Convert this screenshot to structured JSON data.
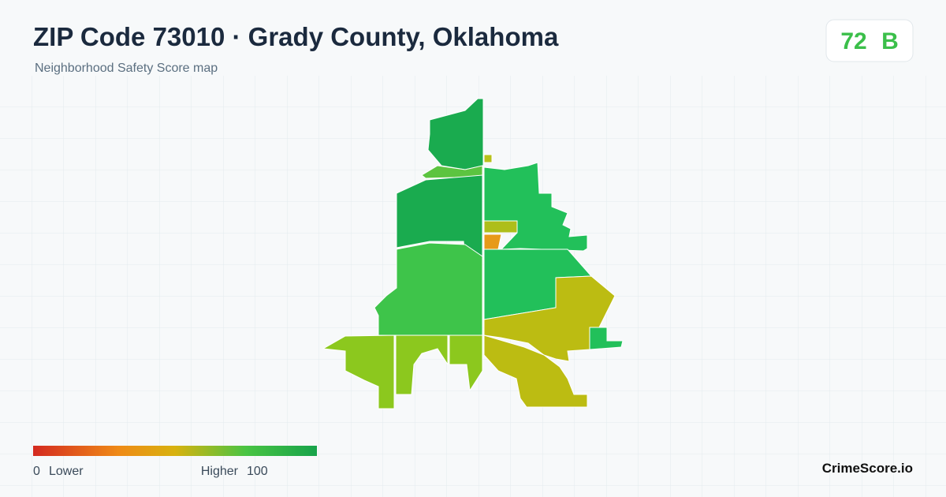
{
  "header": {
    "title": "ZIP Code 73010 · Grady County, Oklahoma",
    "subtitle": "Neighborhood Safety Score map"
  },
  "score": {
    "value": 72,
    "grade": "B"
  },
  "legend": {
    "min": 0,
    "min_label": "Lower",
    "max_label": "Higher",
    "max": 100
  },
  "brand": "CrimeScore.io"
}
